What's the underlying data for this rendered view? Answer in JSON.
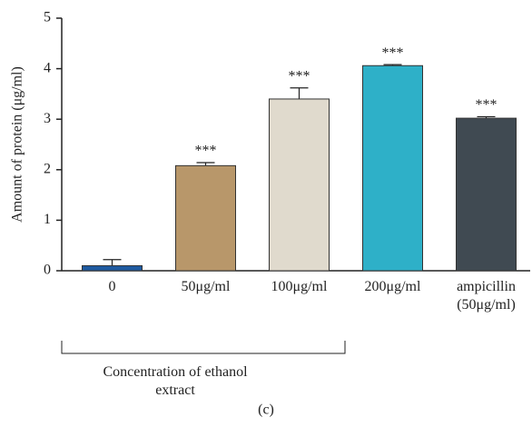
{
  "chart_data": {
    "type": "bar",
    "y_label": "Amount of protein (μg/ml)",
    "categories": [
      "0",
      "50μg/ml",
      "100μg/ml",
      "200μg/ml",
      "ampicillin (50μg/ml)"
    ],
    "values": [
      0.1,
      2.08,
      3.4,
      4.06,
      3.02
    ],
    "errors": [
      0.12,
      0.06,
      0.22,
      0.02,
      0.03
    ],
    "significance": [
      null,
      "***",
      "***",
      "***",
      "***"
    ],
    "colors": [
      "#1f5aa0",
      "#b8976a",
      "#e0dacd",
      "#2eb0c8",
      "#404a52"
    ],
    "ylim": [
      0,
      5
    ],
    "yticks": [
      0,
      1,
      2,
      3,
      4,
      5
    ],
    "group_label": "Concentration of ethanol extract",
    "caption": "(c)"
  }
}
